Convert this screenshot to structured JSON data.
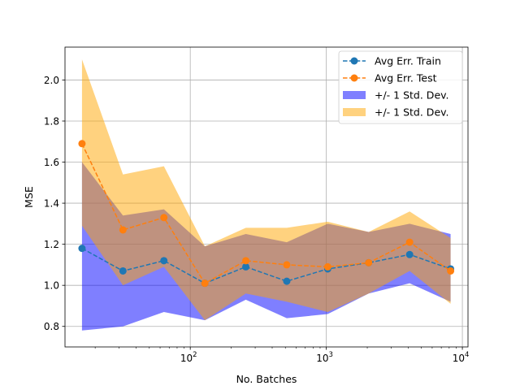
{
  "chart_data": {
    "type": "line",
    "title": "",
    "xlabel": "No. Batches",
    "ylabel": "MSE",
    "xscale": "log",
    "xlim": [
      12,
      11000
    ],
    "ylim": [
      0.7,
      2.16
    ],
    "grid": true,
    "legend_position": "top-right",
    "x": [
      16,
      32,
      64,
      128,
      256,
      512,
      1024,
      2048,
      4096,
      8192
    ],
    "x_ticks": [
      {
        "value": 100,
        "base": "10",
        "exp": "2"
      },
      {
        "value": 1000,
        "base": "10",
        "exp": "3"
      },
      {
        "value": 10000,
        "base": "10",
        "exp": "4"
      }
    ],
    "y_ticks": [
      {
        "value": 0.8,
        "label": "0.8"
      },
      {
        "value": 1.0,
        "label": "1.0"
      },
      {
        "value": 1.2,
        "label": "1.2"
      },
      {
        "value": 1.4,
        "label": "1.4"
      },
      {
        "value": 1.6,
        "label": "1.6"
      },
      {
        "value": 1.8,
        "label": "1.8"
      },
      {
        "value": 2.0,
        "label": "2.0"
      }
    ],
    "series": [
      {
        "name": "Avg Err. Train",
        "kind": "line",
        "color": "#1f77b4",
        "values": [
          1.18,
          1.07,
          1.12,
          1.01,
          1.09,
          1.02,
          1.08,
          1.11,
          1.15,
          1.08
        ]
      },
      {
        "name": "Avg Err. Test",
        "kind": "line",
        "color": "#ff7f0e",
        "values": [
          1.69,
          1.27,
          1.33,
          1.01,
          1.12,
          1.1,
          1.09,
          1.11,
          1.21,
          1.07
        ]
      },
      {
        "name": "+/- 1 Std. Dev.",
        "kind": "band",
        "color": "#0000ff",
        "opacity": 0.5,
        "lower": [
          0.78,
          0.8,
          0.87,
          0.83,
          0.93,
          0.84,
          0.86,
          0.96,
          1.01,
          0.92
        ],
        "upper": [
          1.6,
          1.34,
          1.37,
          1.19,
          1.25,
          1.21,
          1.3,
          1.26,
          1.3,
          1.25
        ]
      },
      {
        "name": "+/- 1 Std. Dev.",
        "kind": "band",
        "color": "#ffa500",
        "opacity": 0.5,
        "lower": [
          1.29,
          1.0,
          1.09,
          0.83,
          0.96,
          0.92,
          0.87,
          0.96,
          1.07,
          0.91
        ],
        "upper": [
          2.1,
          1.54,
          1.58,
          1.19,
          1.28,
          1.28,
          1.31,
          1.26,
          1.36,
          1.23
        ]
      }
    ]
  }
}
